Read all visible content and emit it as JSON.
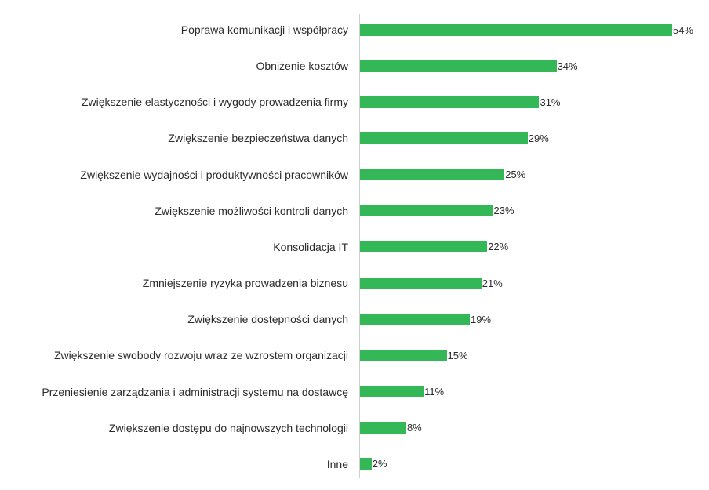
{
  "chart_data": {
    "type": "bar",
    "orientation": "horizontal",
    "bar_color": "#34b857",
    "categories": [
      "Poprawa komunikacji i współpracy",
      "Obniżenie kosztów",
      "Zwiększenie elastyczności i wygody prowadzenia firmy",
      "Zwiększenie bezpieczeństwa danych",
      "Zwiększenie wydajności i produktywności pracowników",
      "Zwiększenie możliwości kontroli danych",
      "Konsolidacja IT",
      "Zmniejszenie ryzyka prowadzenia biznesu",
      "Zwiększenie dostępności danych",
      "Zwiększenie swobody rozwoju wraz ze wzrostem organizacji",
      "Przeniesienie zarządzania i administracji systemu na dostawcę",
      "Zwiększenie dostępu do najnowszych technologii",
      "Inne"
    ],
    "values": [
      54,
      34,
      31,
      29,
      25,
      23,
      22,
      21,
      19,
      15,
      11,
      8,
      2
    ],
    "value_labels": [
      "54%",
      "34%",
      "31%",
      "29%",
      "25%",
      "23%",
      "22%",
      "21%",
      "19%",
      "15%",
      "11%",
      "8%",
      "2%"
    ],
    "xlim": [
      0,
      54
    ],
    "grid": false,
    "legend": "none"
  }
}
